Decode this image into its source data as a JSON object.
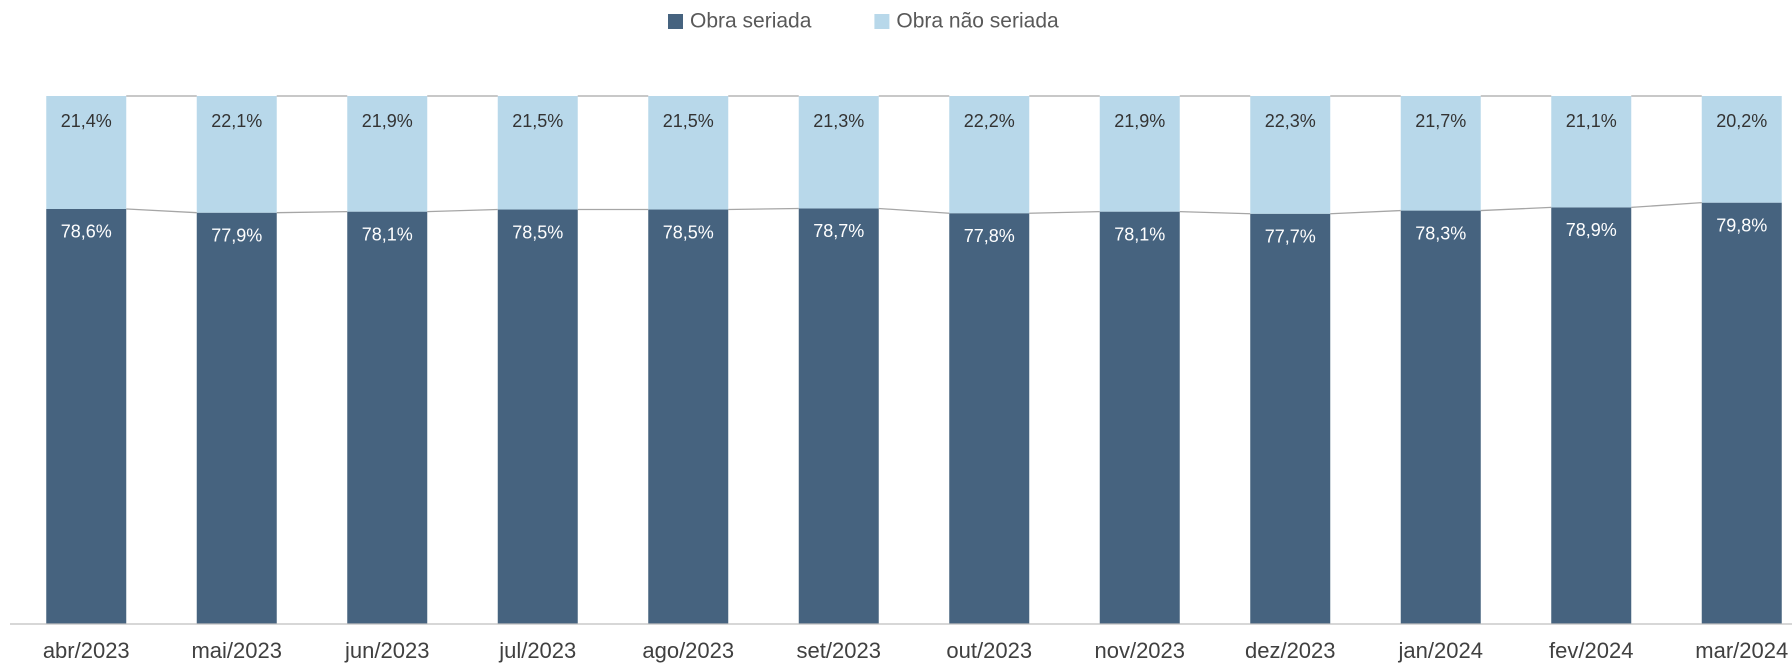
{
  "chart_data": {
    "type": "stacked_bar_100",
    "categories": [
      "abr/2023",
      "mai/2023",
      "jun/2023",
      "jul/2023",
      "ago/2023",
      "set/2023",
      "out/2023",
      "nov/2023",
      "dez/2023",
      "jan/2024",
      "fev/2024",
      "mar/2024"
    ],
    "ylim": [
      0,
      100
    ],
    "series": [
      {
        "name": "Obra seriada",
        "color": "#46637f",
        "values": [
          78.6,
          77.9,
          78.1,
          78.5,
          78.5,
          78.7,
          77.8,
          78.1,
          77.7,
          78.3,
          78.9,
          79.8
        ],
        "value_labels": [
          "78,6%",
          "77,9%",
          "78,1%",
          "78,5%",
          "78,5%",
          "78,7%",
          "77,8%",
          "78,1%",
          "77,7%",
          "78,3%",
          "78,9%",
          "79,8%"
        ]
      },
      {
        "name": "Obra não seriada",
        "color": "#b8d8ea",
        "values": [
          21.4,
          22.1,
          21.9,
          21.5,
          21.5,
          21.3,
          22.2,
          21.9,
          22.3,
          21.7,
          21.1,
          20.2
        ],
        "value_labels": [
          "21,4%",
          "22,1%",
          "21,9%",
          "21,5%",
          "21,5%",
          "21,3%",
          "22,2%",
          "21,9%",
          "22,3%",
          "21,7%",
          "21,1%",
          "20,2%"
        ]
      }
    ]
  }
}
